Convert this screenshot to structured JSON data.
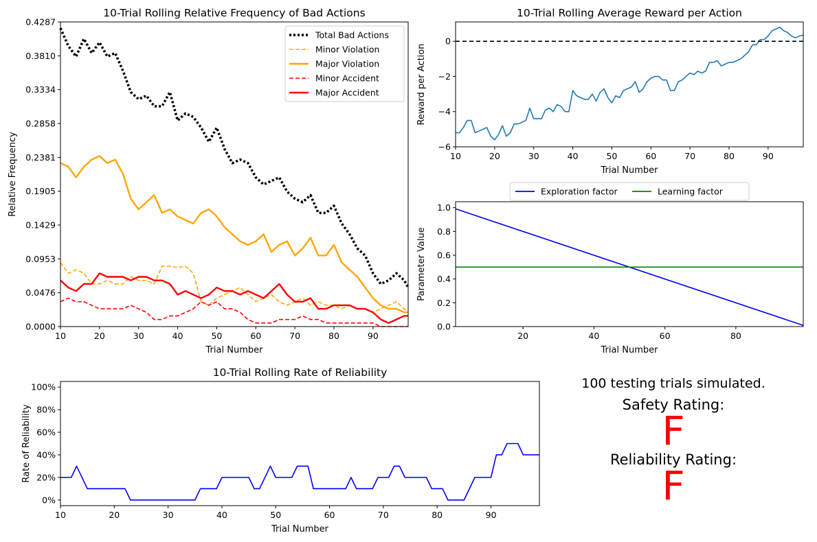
{
  "colors": {
    "total": "#000000",
    "minor_violation": "#ffa500",
    "major_violation": "#ffa500",
    "minor_accident": "#ff0000",
    "major_accident": "#ff0000",
    "reward": "#1f77b4",
    "exploration": "#0000ff",
    "learning": "#008000",
    "reliability": "#0000ff",
    "grade": "#ff0000"
  },
  "summary": {
    "trials_text": "100 testing trials simulated.",
    "safety_label": "Safety Rating:",
    "safety_grade": "F",
    "reliability_label": "Reliability Rating:",
    "reliability_grade": "F"
  },
  "chart_data": [
    {
      "type": "line",
      "title": "10-Trial Rolling Relative Frequency of Bad Actions",
      "xlabel": "Trial Number",
      "ylabel": "Relative Frequency",
      "xlim": [
        10,
        99
      ],
      "ylim": [
        0,
        0.4287
      ],
      "xticks": [
        "10",
        "20",
        "30",
        "40",
        "50",
        "60",
        "70",
        "80",
        "90"
      ],
      "yticks": [
        "0.0000",
        "0.0476",
        "0.0953",
        "0.1429",
        "0.1905",
        "0.2381",
        "0.2858",
        "0.3334",
        "0.3810",
        "0.4287"
      ],
      "legend_position": "top-right",
      "x": [
        10,
        12,
        14,
        16,
        18,
        20,
        22,
        24,
        26,
        28,
        30,
        32,
        34,
        36,
        38,
        40,
        42,
        44,
        46,
        48,
        50,
        52,
        54,
        56,
        58,
        60,
        62,
        64,
        66,
        68,
        70,
        72,
        74,
        76,
        78,
        80,
        82,
        84,
        86,
        88,
        90,
        92,
        94,
        96,
        98,
        99
      ],
      "series": [
        {
          "name": "Total Bad Actions",
          "style": "dotted",
          "values": [
            0.42,
            0.395,
            0.38,
            0.405,
            0.385,
            0.4,
            0.38,
            0.385,
            0.36,
            0.33,
            0.32,
            0.325,
            0.31,
            0.31,
            0.33,
            0.29,
            0.3,
            0.295,
            0.28,
            0.26,
            0.28,
            0.25,
            0.23,
            0.235,
            0.23,
            0.21,
            0.2,
            0.205,
            0.21,
            0.19,
            0.18,
            0.175,
            0.185,
            0.16,
            0.16,
            0.17,
            0.145,
            0.13,
            0.11,
            0.1,
            0.075,
            0.06,
            0.065,
            0.075,
            0.065,
            0.055
          ]
        },
        {
          "name": "Minor Violation",
          "style": "dashed",
          "values": [
            0.09,
            0.075,
            0.08,
            0.075,
            0.06,
            0.06,
            0.065,
            0.06,
            0.06,
            0.07,
            0.065,
            0.065,
            0.06,
            0.085,
            0.085,
            0.083,
            0.085,
            0.075,
            0.035,
            0.03,
            0.04,
            0.045,
            0.05,
            0.055,
            0.045,
            0.035,
            0.04,
            0.045,
            0.035,
            0.03,
            0.035,
            0.04,
            0.03,
            0.035,
            0.03,
            0.03,
            0.025,
            0.03,
            0.025,
            0.025,
            0.02,
            0.025,
            0.03,
            0.035,
            0.025,
            0.02
          ]
        },
        {
          "name": "Major Violation",
          "style": "solid",
          "values": [
            0.23,
            0.225,
            0.21,
            0.225,
            0.235,
            0.24,
            0.23,
            0.235,
            0.215,
            0.18,
            0.165,
            0.175,
            0.185,
            0.16,
            0.165,
            0.155,
            0.15,
            0.145,
            0.16,
            0.165,
            0.155,
            0.14,
            0.13,
            0.12,
            0.115,
            0.12,
            0.13,
            0.105,
            0.115,
            0.12,
            0.1,
            0.11,
            0.125,
            0.1,
            0.1,
            0.115,
            0.09,
            0.08,
            0.07,
            0.055,
            0.04,
            0.03,
            0.025,
            0.025,
            0.02,
            0.02
          ]
        },
        {
          "name": "Minor Accident",
          "style": "dashed",
          "values": [
            0.035,
            0.04,
            0.035,
            0.035,
            0.03,
            0.025,
            0.025,
            0.025,
            0.025,
            0.03,
            0.025,
            0.02,
            0.01,
            0.01,
            0.015,
            0.015,
            0.02,
            0.025,
            0.035,
            0.03,
            0.035,
            0.025,
            0.025,
            0.02,
            0.01,
            0.005,
            0.005,
            0.005,
            0.01,
            0.01,
            0.01,
            0.015,
            0.01,
            0.01,
            0.005,
            0.005,
            0.005,
            0.005,
            0.005,
            0.005,
            0.005,
            0.0,
            0.0,
            0.0,
            0.0,
            0.0
          ]
        },
        {
          "name": "Major Accident",
          "style": "solid",
          "values": [
            0.065,
            0.055,
            0.05,
            0.06,
            0.06,
            0.075,
            0.07,
            0.07,
            0.07,
            0.065,
            0.07,
            0.07,
            0.065,
            0.065,
            0.06,
            0.045,
            0.05,
            0.045,
            0.04,
            0.045,
            0.055,
            0.05,
            0.05,
            0.045,
            0.05,
            0.045,
            0.04,
            0.05,
            0.06,
            0.045,
            0.035,
            0.035,
            0.04,
            0.025,
            0.025,
            0.03,
            0.03,
            0.03,
            0.025,
            0.025,
            0.02,
            0.01,
            0.005,
            0.01,
            0.015,
            0.015
          ]
        }
      ]
    },
    {
      "type": "line",
      "title": "10-Trial Rolling Average Reward per Action",
      "xlabel": "Trial Number",
      "ylabel": "Reward per Action",
      "xlim": [
        10,
        99
      ],
      "ylim": [
        -6,
        1.1
      ],
      "xticks": [
        "10",
        "20",
        "30",
        "40",
        "50",
        "60",
        "70",
        "80",
        "90"
      ],
      "yticks": [
        "−6",
        "−4",
        "−2",
        "0"
      ],
      "hline": 0,
      "x": [
        10,
        11,
        12,
        13,
        14,
        15,
        16,
        17,
        18,
        19,
        20,
        21,
        22,
        23,
        24,
        25,
        26,
        27,
        28,
        29,
        30,
        31,
        32,
        33,
        34,
        35,
        36,
        37,
        38,
        39,
        40,
        41,
        42,
        43,
        44,
        45,
        46,
        47,
        48,
        49,
        50,
        51,
        52,
        53,
        54,
        55,
        56,
        57,
        58,
        59,
        60,
        61,
        62,
        63,
        64,
        65,
        66,
        67,
        68,
        69,
        70,
        71,
        72,
        73,
        74,
        75,
        76,
        77,
        78,
        79,
        80,
        81,
        82,
        83,
        84,
        85,
        86,
        87,
        88,
        89,
        90,
        91,
        92,
        93,
        94,
        95,
        96,
        97,
        98,
        99
      ],
      "series": [
        {
          "name": "",
          "values": [
            -5.2,
            -5.2,
            -4.9,
            -4.5,
            -4.5,
            -5.2,
            -5.1,
            -5.0,
            -4.9,
            -5.4,
            -5.6,
            -5.3,
            -4.8,
            -5.4,
            -5.2,
            -4.7,
            -4.7,
            -4.6,
            -4.5,
            -3.8,
            -4.4,
            -4.4,
            -4.4,
            -3.9,
            -3.8,
            -4.0,
            -3.6,
            -3.7,
            -4.0,
            -4.0,
            -2.8,
            -3.1,
            -3.2,
            -3.3,
            -3.3,
            -3.0,
            -3.4,
            -2.9,
            -2.7,
            -3.2,
            -3.5,
            -3.1,
            -3.2,
            -2.8,
            -2.7,
            -2.6,
            -2.3,
            -2.9,
            -2.7,
            -2.3,
            -2.1,
            -2.0,
            -2.0,
            -2.2,
            -2.2,
            -2.8,
            -2.8,
            -2.3,
            -2.2,
            -2.0,
            -1.8,
            -1.9,
            -1.7,
            -1.8,
            -1.7,
            -1.2,
            -1.2,
            -1.1,
            -1.4,
            -1.3,
            -1.2,
            -1.2,
            -1.1,
            -1.0,
            -0.8,
            -0.6,
            -0.2,
            -0.2,
            0.1,
            0.1,
            0.3,
            0.6,
            0.7,
            0.8,
            0.6,
            0.5,
            0.3,
            0.2,
            0.3,
            0.35
          ]
        }
      ]
    },
    {
      "type": "line",
      "xlabel": "Trial Number",
      "ylabel": "Parameter Value",
      "xlim": [
        1,
        99
      ],
      "ylim": [
        0,
        1.05
      ],
      "xticks": [
        "20",
        "40",
        "60",
        "80"
      ],
      "yticks": [
        "0.0",
        "0.2",
        "0.4",
        "0.6",
        "0.8",
        "1.0"
      ],
      "legend_position": "top-center",
      "x": [
        1,
        99
      ],
      "series": [
        {
          "name": "Exploration factor",
          "values": [
            0.99,
            0.01
          ]
        },
        {
          "name": "Learning factor",
          "values": [
            0.5,
            0.5
          ]
        }
      ]
    },
    {
      "type": "line",
      "title": "10-Trial Rolling Rate of Reliability",
      "xlabel": "Trial Number",
      "ylabel": "Rate of Reliability",
      "xlim": [
        10,
        99
      ],
      "ylim": [
        -5,
        105
      ],
      "xticks": [
        "10",
        "20",
        "30",
        "40",
        "50",
        "60",
        "70",
        "80",
        "90"
      ],
      "yticks": [
        "0%",
        "20%",
        "40%",
        "60%",
        "80%",
        "100%"
      ],
      "x": [
        10,
        12,
        13,
        15,
        16,
        22,
        23,
        35,
        36,
        39,
        40,
        45,
        46,
        47,
        49,
        50,
        53,
        54,
        56,
        57,
        62,
        63,
        64,
        65,
        68,
        69,
        71,
        72,
        73,
        74,
        78,
        79,
        81,
        82,
        84,
        85,
        87,
        88,
        90,
        91,
        92,
        93,
        95,
        96,
        99
      ],
      "series": [
        {
          "name": "",
          "values": [
            20,
            20,
            30,
            10,
            10,
            10,
            0,
            0,
            10,
            10,
            20,
            20,
            10,
            10,
            30,
            20,
            20,
            30,
            30,
            10,
            10,
            10,
            20,
            10,
            10,
            20,
            20,
            30,
            30,
            20,
            20,
            10,
            10,
            0,
            0,
            0,
            20,
            20,
            20,
            40,
            40,
            50,
            50,
            40,
            40
          ]
        }
      ]
    }
  ]
}
